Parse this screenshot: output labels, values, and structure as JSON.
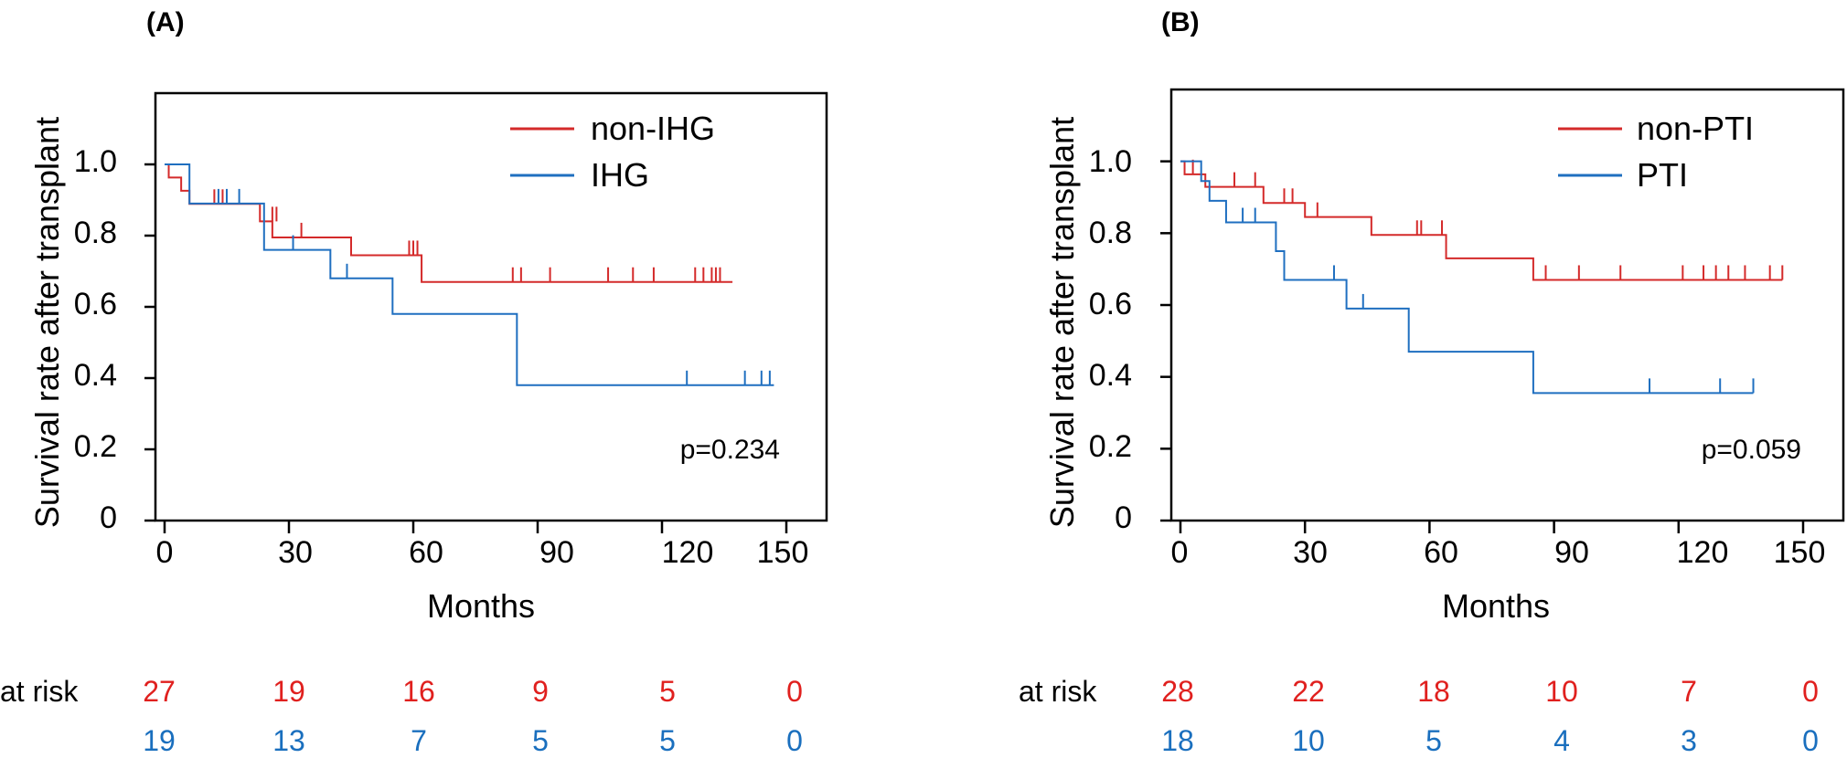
{
  "colors": {
    "red": "#d42a2a",
    "blue": "#1f6fc0",
    "risk_red": "#e0201e",
    "risk_blue": "#1a6fbe",
    "axis": "#000000"
  },
  "chart_data": [
    {
      "type": "line",
      "subtype": "kaplan-meier",
      "panel_label": "(A)",
      "xlabel": "Months",
      "ylabel": "Survival rate after transplant",
      "xlim": [
        0,
        150
      ],
      "ylim": [
        0,
        1.2
      ],
      "xticks": [
        0,
        30,
        60,
        90,
        120,
        150
      ],
      "xtick_labels": [
        "0",
        "30",
        "60",
        "90",
        "120",
        "150"
      ],
      "yticks": [
        0,
        0.2,
        0.4,
        0.6,
        0.8,
        1.0
      ],
      "ytick_labels": [
        "0",
        "0.2",
        "0.4",
        "0.6",
        "0.8",
        "1.0"
      ],
      "p_value": "p=0.234",
      "legend_position": "top-right",
      "series": [
        {
          "name": "non-IHG",
          "color": "#d42a2a",
          "steps": [
            [
              0,
              1.0
            ],
            [
              1,
              0.963
            ],
            [
              4,
              0.926
            ],
            [
              6,
              0.889
            ],
            [
              23,
              0.84
            ],
            [
              26,
              0.795
            ],
            [
              45,
              0.745
            ],
            [
              62,
              0.67
            ],
            [
              137,
              0.67
            ]
          ],
          "censors": [
            [
              12,
              0.889
            ],
            [
              14,
              0.889
            ],
            [
              15,
              0.889
            ],
            [
              26,
              0.84
            ],
            [
              27,
              0.84
            ],
            [
              33,
              0.795
            ],
            [
              59,
              0.745
            ],
            [
              60,
              0.745
            ],
            [
              61,
              0.745
            ],
            [
              84,
              0.67
            ],
            [
              86,
              0.67
            ],
            [
              93,
              0.67
            ],
            [
              107,
              0.67
            ],
            [
              113,
              0.67
            ],
            [
              118,
              0.67
            ],
            [
              128,
              0.67
            ],
            [
              130,
              0.67
            ],
            [
              132,
              0.67
            ],
            [
              133,
              0.67
            ],
            [
              134,
              0.67
            ]
          ]
        },
        {
          "name": "IHG",
          "color": "#1f6fc0",
          "steps": [
            [
              0,
              1.0
            ],
            [
              6,
              0.89
            ],
            [
              24,
              0.76
            ],
            [
              40,
              0.68
            ],
            [
              55,
              0.58
            ],
            [
              85,
              0.38
            ],
            [
              147,
              0.38
            ]
          ],
          "censors": [
            [
              13,
              0.89
            ],
            [
              15,
              0.89
            ],
            [
              18,
              0.89
            ],
            [
              31,
              0.76
            ],
            [
              44,
              0.68
            ],
            [
              126,
              0.38
            ],
            [
              140,
              0.38
            ],
            [
              144,
              0.38
            ],
            [
              146,
              0.38
            ]
          ]
        }
      ],
      "at_risk": {
        "label": "at risk",
        "times": [
          0,
          30,
          60,
          90,
          120,
          150
        ],
        "rows": [
          {
            "group": "non-IHG",
            "color": "#e0201e",
            "values": [
              "27",
              "19",
              "16",
              "9",
              "5",
              "0"
            ]
          },
          {
            "group": "IHG",
            "color": "#1a6fbe",
            "values": [
              "19",
              "13",
              "7",
              "5",
              "5",
              "0"
            ]
          }
        ]
      }
    },
    {
      "type": "line",
      "subtype": "kaplan-meier",
      "panel_label": "(B)",
      "xlabel": "Months",
      "ylabel": "Survival rate after transplant",
      "xlim": [
        0,
        150
      ],
      "ylim": [
        0,
        1.2
      ],
      "xticks": [
        0,
        30,
        60,
        90,
        120,
        150
      ],
      "xtick_labels": [
        "0",
        "30",
        "60",
        "90",
        "120",
        "150"
      ],
      "yticks": [
        0,
        0.2,
        0.4,
        0.6,
        0.8,
        1.0
      ],
      "ytick_labels": [
        "0",
        "0.2",
        "0.4",
        "0.6",
        "0.8",
        "1.0"
      ],
      "p_value": "p=0.059",
      "legend_position": "top-right",
      "series": [
        {
          "name": "non-PTI",
          "color": "#d42a2a",
          "steps": [
            [
              0,
              1.0
            ],
            [
              1,
              0.964
            ],
            [
              6,
              0.929
            ],
            [
              20,
              0.884
            ],
            [
              30,
              0.845
            ],
            [
              46,
              0.795
            ],
            [
              64,
              0.73
            ],
            [
              85,
              0.67
            ],
            [
              145,
              0.67
            ]
          ],
          "censors": [
            [
              3,
              0.964
            ],
            [
              13,
              0.929
            ],
            [
              18,
              0.929
            ],
            [
              25,
              0.884
            ],
            [
              27,
              0.884
            ],
            [
              33,
              0.845
            ],
            [
              57,
              0.795
            ],
            [
              58,
              0.795
            ],
            [
              63,
              0.795
            ],
            [
              88,
              0.67
            ],
            [
              96,
              0.67
            ],
            [
              106,
              0.67
            ],
            [
              121,
              0.67
            ],
            [
              126,
              0.67
            ],
            [
              129,
              0.67
            ],
            [
              132,
              0.67
            ],
            [
              136,
              0.67
            ],
            [
              142,
              0.67
            ],
            [
              145,
              0.67
            ]
          ]
        },
        {
          "name": "PTI",
          "color": "#1f6fc0",
          "steps": [
            [
              0,
              1.0
            ],
            [
              5,
              0.945
            ],
            [
              7,
              0.89
            ],
            [
              11,
              0.83
            ],
            [
              23,
              0.75
            ],
            [
              25,
              0.67
            ],
            [
              40,
              0.59
            ],
            [
              55,
              0.47
            ],
            [
              85,
              0.355
            ],
            [
              138,
              0.355
            ]
          ],
          "censors": [
            [
              15,
              0.83
            ],
            [
              18,
              0.83
            ],
            [
              37,
              0.67
            ],
            [
              44,
              0.59
            ],
            [
              113,
              0.355
            ],
            [
              130,
              0.355
            ],
            [
              138,
              0.355
            ]
          ]
        }
      ],
      "at_risk": {
        "label": "at risk",
        "times": [
          0,
          30,
          60,
          90,
          120,
          150
        ],
        "rows": [
          {
            "group": "non-PTI",
            "color": "#e0201e",
            "values": [
              "28",
              "22",
              "18",
              "10",
              "7",
              "0"
            ]
          },
          {
            "group": "PTI",
            "color": "#1a6fbe",
            "values": [
              "18",
              "10",
              "5",
              "4",
              "3",
              "0"
            ]
          }
        ]
      }
    }
  ]
}
